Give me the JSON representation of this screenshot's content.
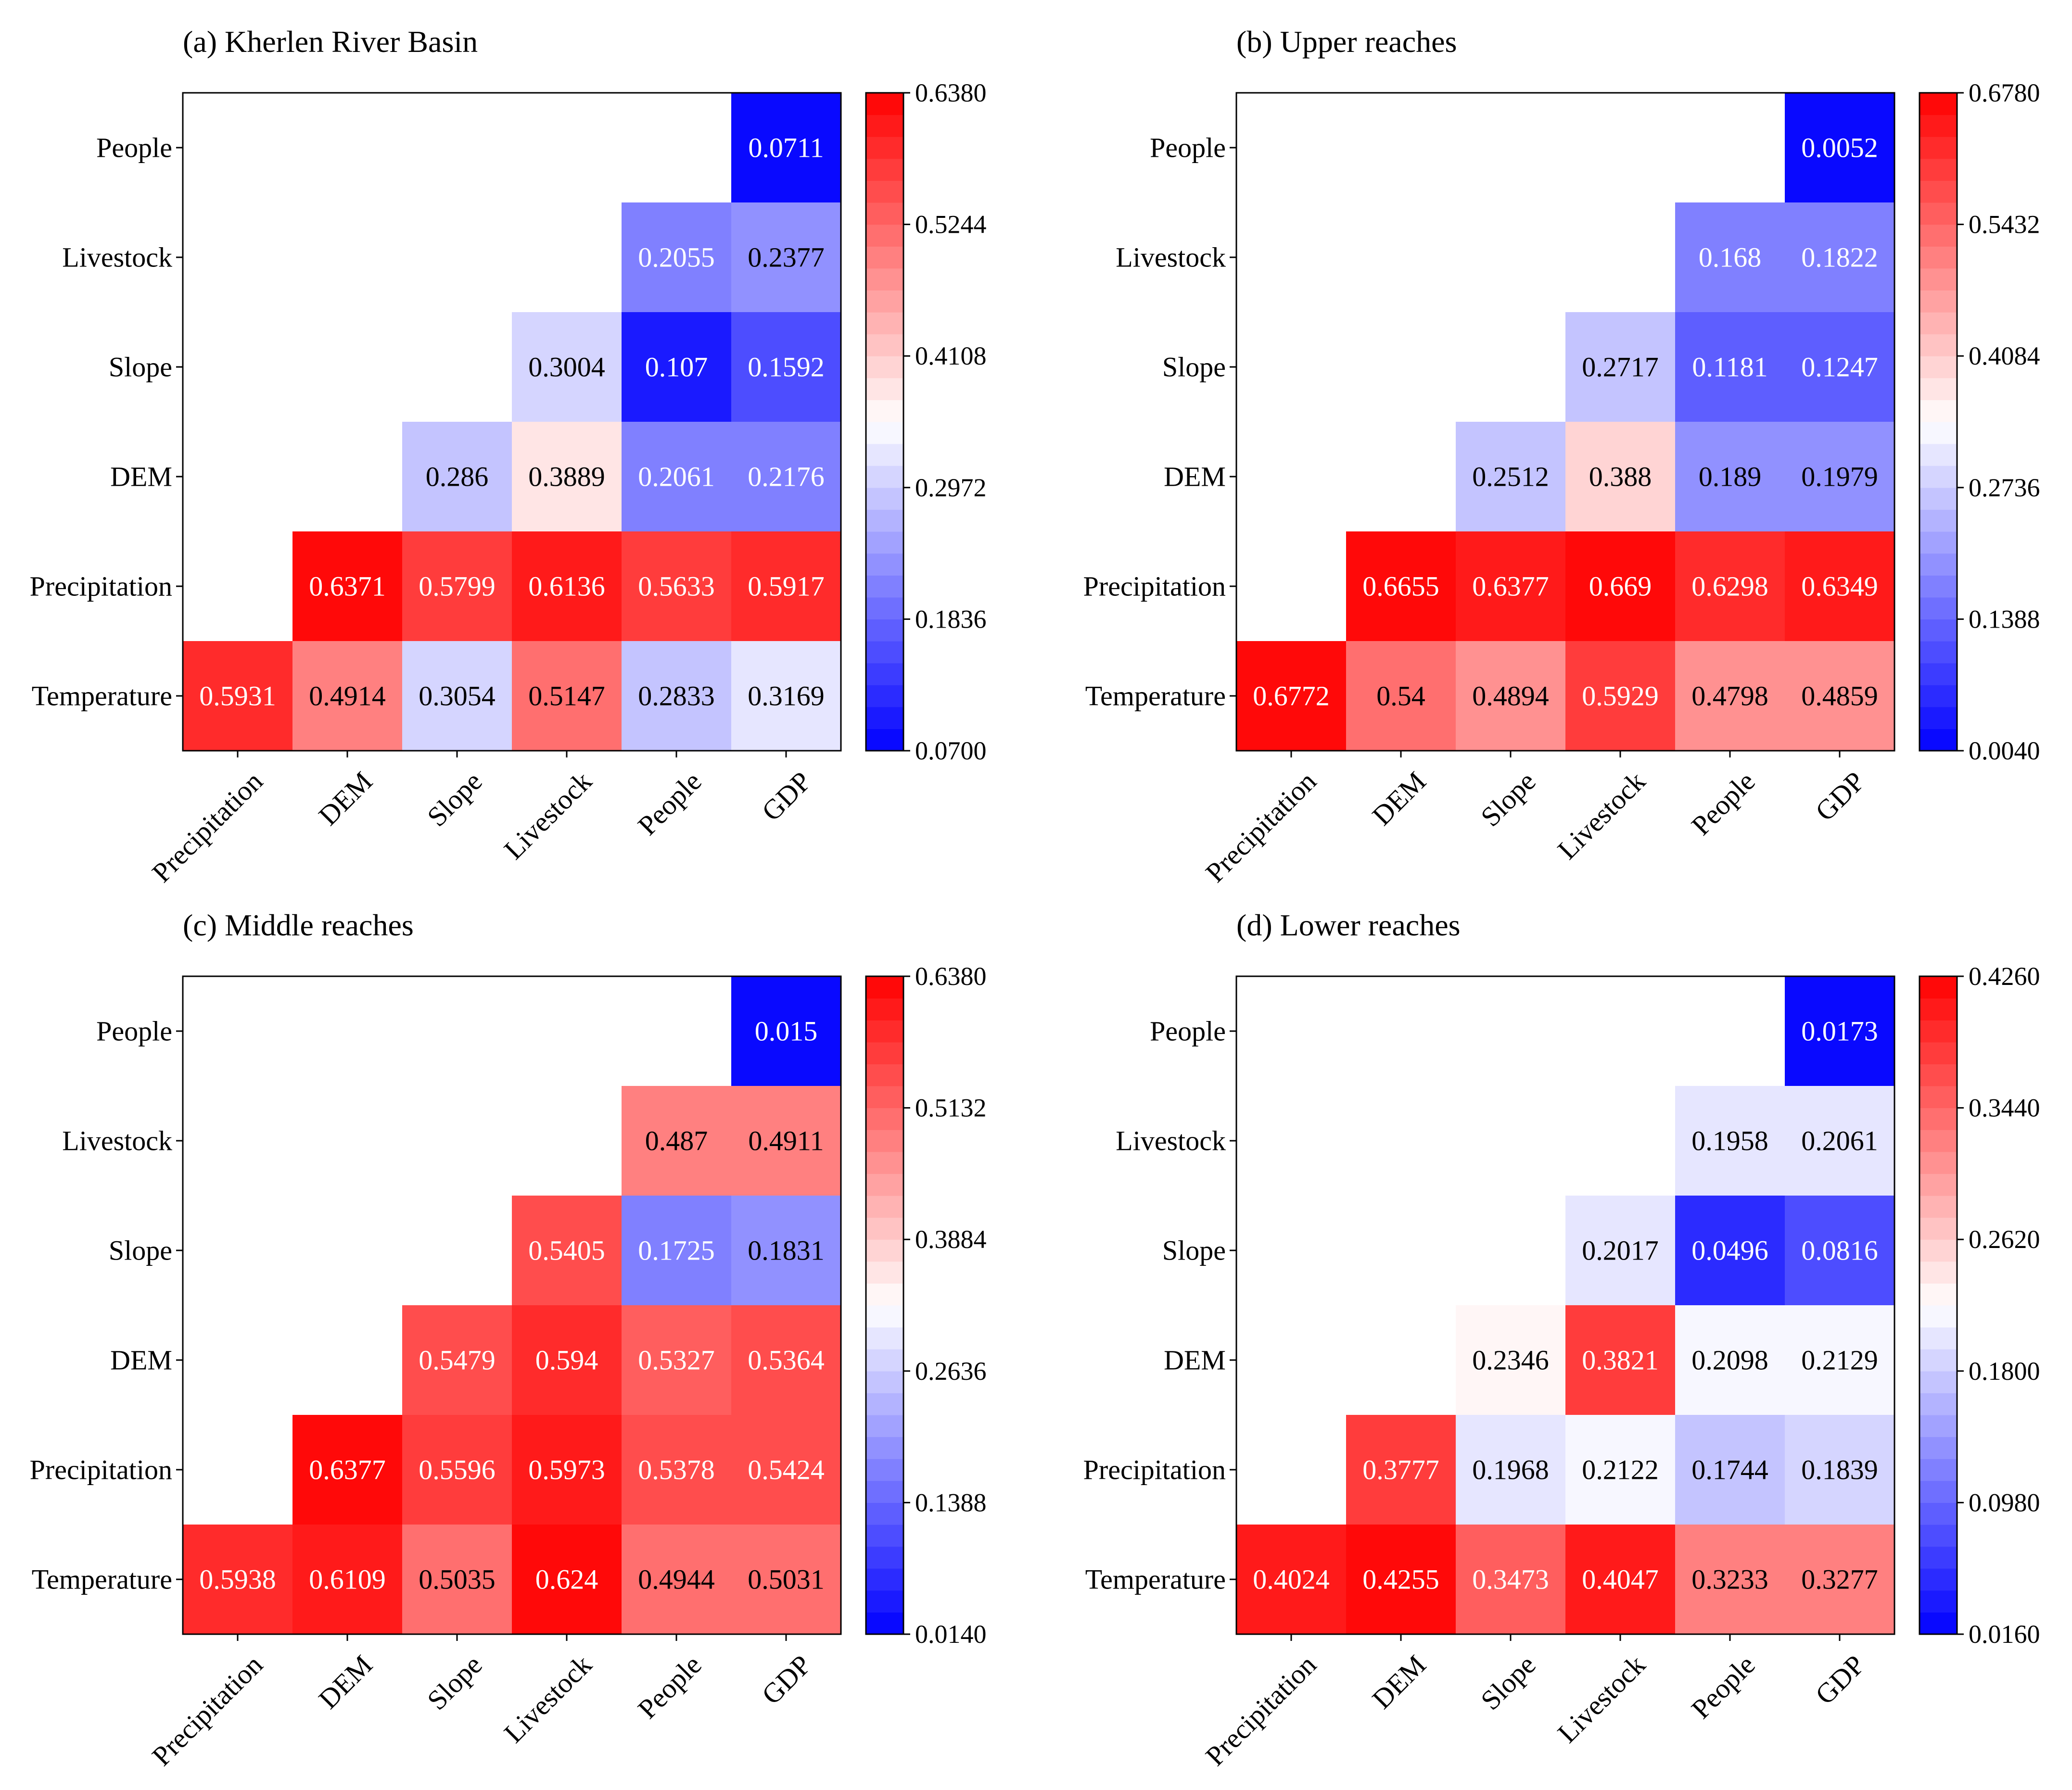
{
  "chart_data": [
    {
      "type": "heatmap",
      "title": "(a) Kherlen River Basin",
      "x_categories": [
        "Precipitation",
        "DEM",
        "Slope",
        "Livestock",
        "People",
        "GDP"
      ],
      "y_categories": [
        "People",
        "Livestock",
        "Slope",
        "DEM",
        "Precipitation",
        "Temperature"
      ],
      "cells": [
        {
          "row": "People",
          "col": "GDP",
          "value": "0.0711"
        },
        {
          "row": "Livestock",
          "col": "People",
          "value": "0.2055"
        },
        {
          "row": "Livestock",
          "col": "GDP",
          "value": "0.2377"
        },
        {
          "row": "Slope",
          "col": "Livestock",
          "value": "0.3004"
        },
        {
          "row": "Slope",
          "col": "People",
          "value": "0.107"
        },
        {
          "row": "Slope",
          "col": "GDP",
          "value": "0.1592"
        },
        {
          "row": "DEM",
          "col": "Slope",
          "value": "0.286"
        },
        {
          "row": "DEM",
          "col": "Livestock",
          "value": "0.3889"
        },
        {
          "row": "DEM",
          "col": "People",
          "value": "0.2061"
        },
        {
          "row": "DEM",
          "col": "GDP",
          "value": "0.2176"
        },
        {
          "row": "Precipitation",
          "col": "DEM",
          "value": "0.6371"
        },
        {
          "row": "Precipitation",
          "col": "Slope",
          "value": "0.5799"
        },
        {
          "row": "Precipitation",
          "col": "Livestock",
          "value": "0.6136"
        },
        {
          "row": "Precipitation",
          "col": "People",
          "value": "0.5633"
        },
        {
          "row": "Precipitation",
          "col": "GDP",
          "value": "0.5917"
        },
        {
          "row": "Temperature",
          "col": "Precipitation",
          "value": "0.5931"
        },
        {
          "row": "Temperature",
          "col": "DEM",
          "value": "0.4914"
        },
        {
          "row": "Temperature",
          "col": "Slope",
          "value": "0.3054"
        },
        {
          "row": "Temperature",
          "col": "Livestock",
          "value": "0.5147"
        },
        {
          "row": "Temperature",
          "col": "People",
          "value": "0.2833"
        },
        {
          "row": "Temperature",
          "col": "GDP",
          "value": "0.3169"
        }
      ],
      "colorbar": {
        "min": 0.07,
        "max": 0.638,
        "ticks": [
          "0.0700",
          "0.1836",
          "0.2972",
          "0.4108",
          "0.5244",
          "0.6380"
        ]
      }
    },
    {
      "type": "heatmap",
      "title": "(b) Upper reaches",
      "x_categories": [
        "Precipitation",
        "DEM",
        "Slope",
        "Livestock",
        "People",
        "GDP"
      ],
      "y_categories": [
        "People",
        "Livestock",
        "Slope",
        "DEM",
        "Precipitation",
        "Temperature"
      ],
      "cells": [
        {
          "row": "People",
          "col": "GDP",
          "value": "0.0052"
        },
        {
          "row": "Livestock",
          "col": "People",
          "value": "0.168"
        },
        {
          "row": "Livestock",
          "col": "GDP",
          "value": "0.1822"
        },
        {
          "row": "Slope",
          "col": "Livestock",
          "value": "0.2717"
        },
        {
          "row": "Slope",
          "col": "People",
          "value": "0.1181"
        },
        {
          "row": "Slope",
          "col": "GDP",
          "value": "0.1247"
        },
        {
          "row": "DEM",
          "col": "Slope",
          "value": "0.2512"
        },
        {
          "row": "DEM",
          "col": "Livestock",
          "value": "0.388"
        },
        {
          "row": "DEM",
          "col": "People",
          "value": "0.189"
        },
        {
          "row": "DEM",
          "col": "GDP",
          "value": "0.1979"
        },
        {
          "row": "Precipitation",
          "col": "DEM",
          "value": "0.6655"
        },
        {
          "row": "Precipitation",
          "col": "Slope",
          "value": "0.6377"
        },
        {
          "row": "Precipitation",
          "col": "Livestock",
          "value": "0.669"
        },
        {
          "row": "Precipitation",
          "col": "People",
          "value": "0.6298"
        },
        {
          "row": "Precipitation",
          "col": "GDP",
          "value": "0.6349"
        },
        {
          "row": "Temperature",
          "col": "Precipitation",
          "value": "0.6772"
        },
        {
          "row": "Temperature",
          "col": "DEM",
          "value": "0.54"
        },
        {
          "row": "Temperature",
          "col": "Slope",
          "value": "0.4894"
        },
        {
          "row": "Temperature",
          "col": "Livestock",
          "value": "0.5929"
        },
        {
          "row": "Temperature",
          "col": "People",
          "value": "0.4798"
        },
        {
          "row": "Temperature",
          "col": "GDP",
          "value": "0.4859"
        }
      ],
      "colorbar": {
        "min": 0.004,
        "max": 0.678,
        "ticks": [
          "0.0040",
          "0.1388",
          "0.2736",
          "0.4084",
          "0.5432",
          "0.6780"
        ]
      }
    },
    {
      "type": "heatmap",
      "title": "(c) Middle reaches",
      "x_categories": [
        "Precipitation",
        "DEM",
        "Slope",
        "Livestock",
        "People",
        "GDP"
      ],
      "y_categories": [
        "People",
        "Livestock",
        "Slope",
        "DEM",
        "Precipitation",
        "Temperature"
      ],
      "cells": [
        {
          "row": "People",
          "col": "GDP",
          "value": "0.015"
        },
        {
          "row": "Livestock",
          "col": "People",
          "value": "0.487"
        },
        {
          "row": "Livestock",
          "col": "GDP",
          "value": "0.4911"
        },
        {
          "row": "Slope",
          "col": "Livestock",
          "value": "0.5405"
        },
        {
          "row": "Slope",
          "col": "People",
          "value": "0.1725"
        },
        {
          "row": "Slope",
          "col": "GDP",
          "value": "0.1831"
        },
        {
          "row": "DEM",
          "col": "Slope",
          "value": "0.5479"
        },
        {
          "row": "DEM",
          "col": "Livestock",
          "value": "0.594"
        },
        {
          "row": "DEM",
          "col": "People",
          "value": "0.5327"
        },
        {
          "row": "DEM",
          "col": "GDP",
          "value": "0.5364"
        },
        {
          "row": "Precipitation",
          "col": "DEM",
          "value": "0.6377"
        },
        {
          "row": "Precipitation",
          "col": "Slope",
          "value": "0.5596"
        },
        {
          "row": "Precipitation",
          "col": "Livestock",
          "value": "0.5973"
        },
        {
          "row": "Precipitation",
          "col": "People",
          "value": "0.5378"
        },
        {
          "row": "Precipitation",
          "col": "GDP",
          "value": "0.5424"
        },
        {
          "row": "Temperature",
          "col": "Precipitation",
          "value": "0.5938"
        },
        {
          "row": "Temperature",
          "col": "DEM",
          "value": "0.6109"
        },
        {
          "row": "Temperature",
          "col": "Slope",
          "value": "0.5035"
        },
        {
          "row": "Temperature",
          "col": "Livestock",
          "value": "0.624"
        },
        {
          "row": "Temperature",
          "col": "People",
          "value": "0.4944"
        },
        {
          "row": "Temperature",
          "col": "GDP",
          "value": "0.5031"
        }
      ],
      "colorbar": {
        "min": 0.014,
        "max": 0.638,
        "ticks": [
          "0.0140",
          "0.1388",
          "0.2636",
          "0.3884",
          "0.5132",
          "0.6380"
        ]
      }
    },
    {
      "type": "heatmap",
      "title": "(d) Lower reaches",
      "x_categories": [
        "Precipitation",
        "DEM",
        "Slope",
        "Livestock",
        "People",
        "GDP"
      ],
      "y_categories": [
        "People",
        "Livestock",
        "Slope",
        "DEM",
        "Precipitation",
        "Temperature"
      ],
      "cells": [
        {
          "row": "People",
          "col": "GDP",
          "value": "0.0173"
        },
        {
          "row": "Livestock",
          "col": "People",
          "value": "0.1958"
        },
        {
          "row": "Livestock",
          "col": "GDP",
          "value": "0.2061"
        },
        {
          "row": "Slope",
          "col": "Livestock",
          "value": "0.2017"
        },
        {
          "row": "Slope",
          "col": "People",
          "value": "0.0496"
        },
        {
          "row": "Slope",
          "col": "GDP",
          "value": "0.0816"
        },
        {
          "row": "DEM",
          "col": "Slope",
          "value": "0.2346"
        },
        {
          "row": "DEM",
          "col": "Livestock",
          "value": "0.3821"
        },
        {
          "row": "DEM",
          "col": "People",
          "value": "0.2098"
        },
        {
          "row": "DEM",
          "col": "GDP",
          "value": "0.2129"
        },
        {
          "row": "Precipitation",
          "col": "DEM",
          "value": "0.3777"
        },
        {
          "row": "Precipitation",
          "col": "Slope",
          "value": "0.1968"
        },
        {
          "row": "Precipitation",
          "col": "Livestock",
          "value": "0.2122"
        },
        {
          "row": "Precipitation",
          "col": "People",
          "value": "0.1744"
        },
        {
          "row": "Precipitation",
          "col": "GDP",
          "value": "0.1839"
        },
        {
          "row": "Temperature",
          "col": "Precipitation",
          "value": "0.4024"
        },
        {
          "row": "Temperature",
          "col": "DEM",
          "value": "0.4255"
        },
        {
          "row": "Temperature",
          "col": "Slope",
          "value": "0.3473"
        },
        {
          "row": "Temperature",
          "col": "Livestock",
          "value": "0.4047"
        },
        {
          "row": "Temperature",
          "col": "People",
          "value": "0.3233"
        },
        {
          "row": "Temperature",
          "col": "GDP",
          "value": "0.3277"
        }
      ],
      "colorbar": {
        "min": 0.016,
        "max": 0.426,
        "ticks": [
          "0.0160",
          "0.0980",
          "0.1800",
          "0.2620",
          "0.3440",
          "0.4260"
        ]
      }
    }
  ]
}
